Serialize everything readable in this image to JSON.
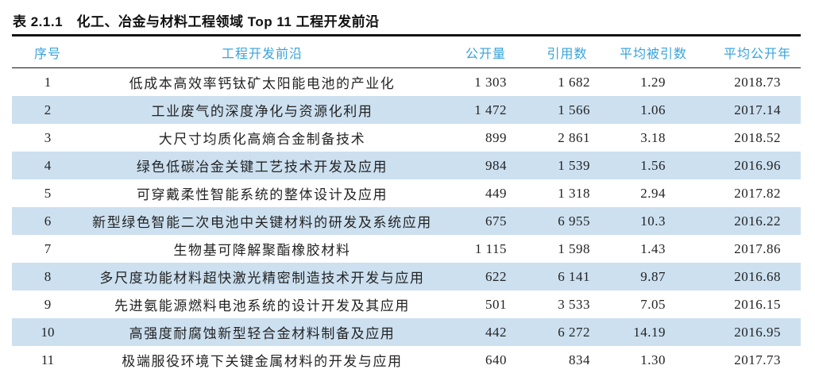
{
  "table": {
    "title": "表 2.1.1　化工、冶金与材料工程领域 Top 11 工程开发前沿",
    "columns": [
      {
        "key": "no",
        "label": "序号"
      },
      {
        "key": "front",
        "label": "工程开发前沿"
      },
      {
        "key": "pub",
        "label": "公开量"
      },
      {
        "key": "cite",
        "label": "引用数"
      },
      {
        "key": "avg_cite",
        "label": "平均被引数"
      },
      {
        "key": "avg_year",
        "label": "平均公开年"
      }
    ],
    "rows": [
      {
        "no": "1",
        "front": "低成本高效率钙钛矿太阳能电池的产业化",
        "pub": "1 303",
        "cite": "1 682",
        "avg_cite": "1.29",
        "avg_year": "2018.73"
      },
      {
        "no": "2",
        "front": "工业废气的深度净化与资源化利用",
        "pub": "1 472",
        "cite": "1 566",
        "avg_cite": "1.06",
        "avg_year": "2017.14"
      },
      {
        "no": "3",
        "front": "大尺寸均质化高熵合金制备技术",
        "pub": "899",
        "cite": "2 861",
        "avg_cite": "3.18",
        "avg_year": "2018.52"
      },
      {
        "no": "4",
        "front": "绿色低碳冶金关键工艺技术开发及应用",
        "pub": "984",
        "cite": "1 539",
        "avg_cite": "1.56",
        "avg_year": "2016.96"
      },
      {
        "no": "5",
        "front": "可穿戴柔性智能系统的整体设计及应用",
        "pub": "449",
        "cite": "1 318",
        "avg_cite": "2.94",
        "avg_year": "2017.82"
      },
      {
        "no": "6",
        "front": "新型绿色智能二次电池中关键材料的研发及系统应用",
        "pub": "675",
        "cite": "6 955",
        "avg_cite": "10.3",
        "avg_year": "2016.22"
      },
      {
        "no": "7",
        "front": "生物基可降解聚酯橡胶材料",
        "pub": "1 115",
        "cite": "1 598",
        "avg_cite": "1.43",
        "avg_year": "2017.86"
      },
      {
        "no": "8",
        "front": "多尺度功能材料超快激光精密制造技术开发与应用",
        "pub": "622",
        "cite": "6 141",
        "avg_cite": "9.87",
        "avg_year": "2016.68"
      },
      {
        "no": "9",
        "front": "先进氨能源燃料电池系统的设计开发及其应用",
        "pub": "501",
        "cite": "3 533",
        "avg_cite": "7.05",
        "avg_year": "2016.15"
      },
      {
        "no": "10",
        "front": "高强度耐腐蚀新型轻合金材料制备及应用",
        "pub": "442",
        "cite": "6 272",
        "avg_cite": "14.19",
        "avg_year": "2016.95"
      },
      {
        "no": "11",
        "front": "极端服役环境下关键金属材料的开发与应用",
        "pub": "640",
        "cite": "834",
        "avg_cite": "1.30",
        "avg_year": "2017.73"
      }
    ],
    "colors": {
      "header_text": "#38a3dd",
      "stripe_row_bg": "#cce0f0",
      "rule": "#141414",
      "body_text": "#232323"
    }
  }
}
